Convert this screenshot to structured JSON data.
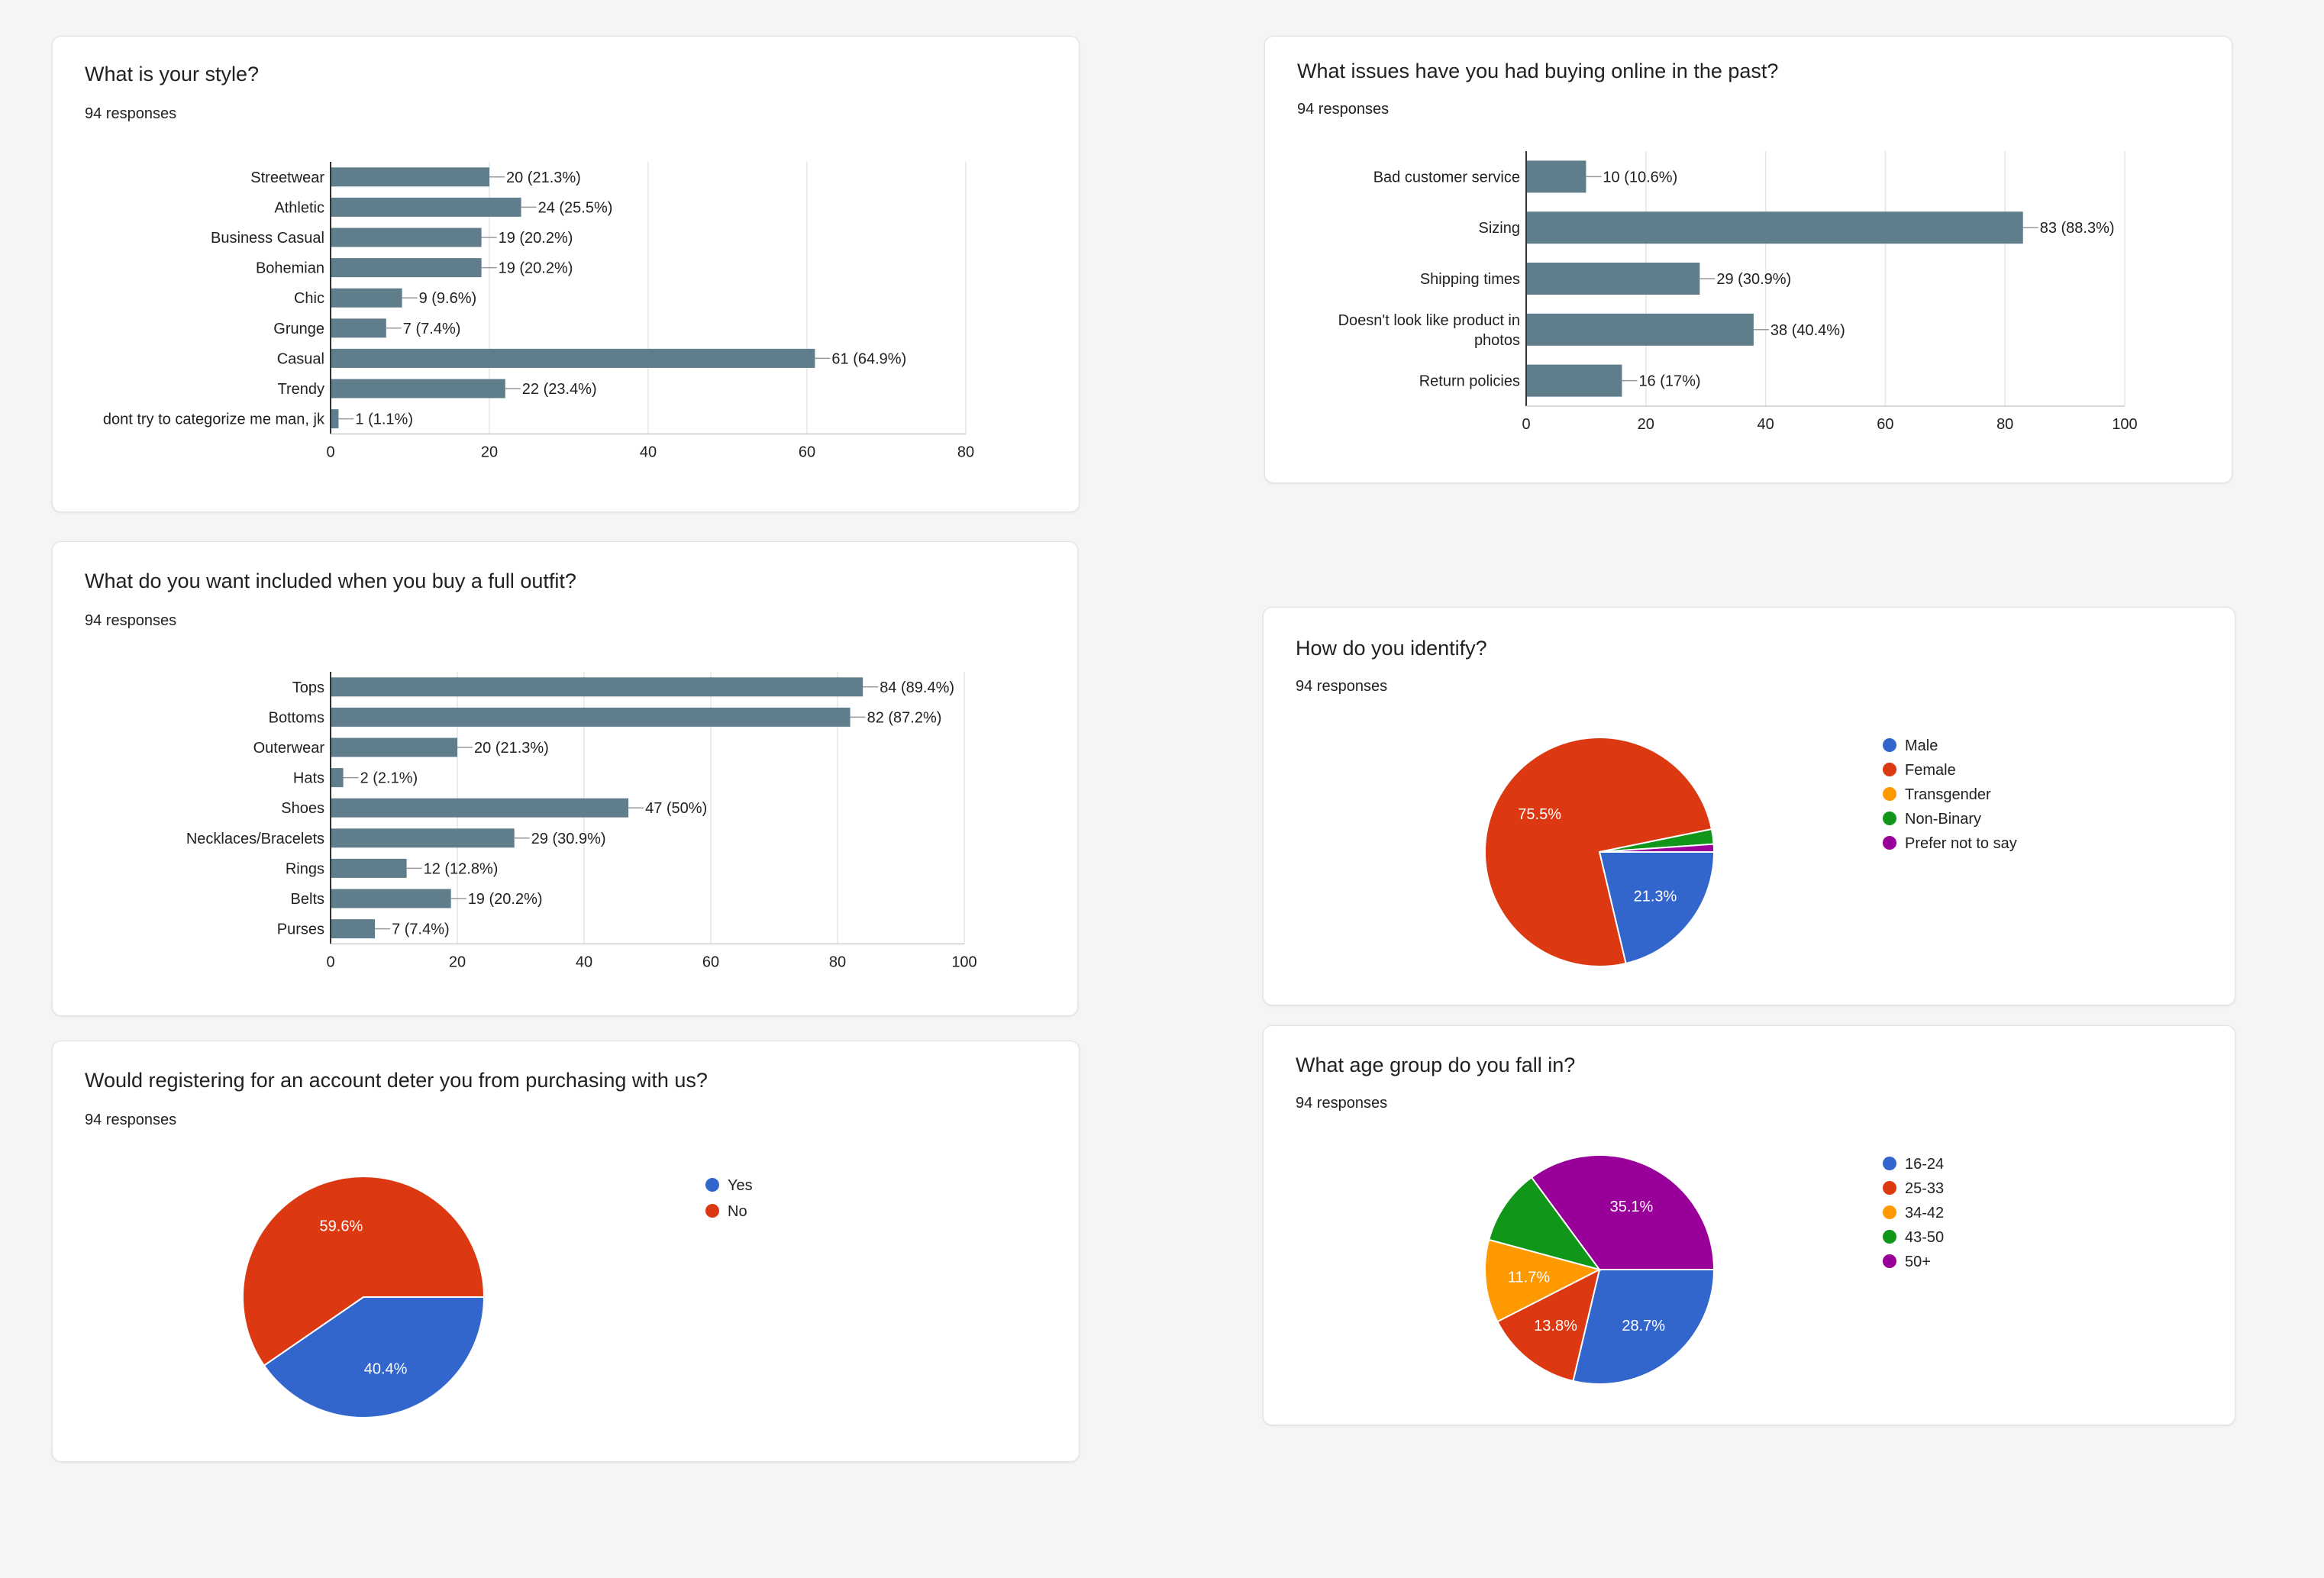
{
  "colors": {
    "bar": "#607d8b",
    "grid": "#e6e6e6",
    "axis": "#333333",
    "text": "#202124"
  },
  "chart_data": [
    {
      "id": "style",
      "type": "bar",
      "orientation": "horizontal",
      "title": "What is your style?",
      "subtitle": "94 responses",
      "categories": [
        "Streetwear",
        "Athletic",
        "Business Casual",
        "Bohemian",
        "Chic",
        "Grunge",
        "Casual",
        "Trendy",
        "dont try to categorize me man, jk"
      ],
      "values": [
        20,
        24,
        19,
        19,
        9,
        7,
        61,
        22,
        1
      ],
      "data_labels": [
        "20 (21.3%)",
        "24 (25.5%)",
        "19 (20.2%)",
        "19 (20.2%)",
        "9 (9.6%)",
        "7 (7.4%)",
        "61 (64.9%)",
        "22 (23.4%)",
        "1 (1.1%)"
      ],
      "xlim": [
        0,
        80
      ],
      "ticks": [
        0,
        20,
        40,
        60,
        80
      ],
      "tick_labels": [
        "0",
        "20",
        "40",
        "60",
        "80"
      ],
      "grid": true
    },
    {
      "id": "issues",
      "type": "bar",
      "orientation": "horizontal",
      "title": "What issues have you had buying online in the past?",
      "subtitle": "94 responses",
      "categories": [
        [
          "Bad customer service"
        ],
        [
          "Sizing"
        ],
        [
          "Shipping times"
        ],
        [
          "Doesn't look like product in",
          "photos"
        ],
        [
          "Return policies"
        ]
      ],
      "values": [
        10,
        83,
        29,
        38,
        16
      ],
      "data_labels": [
        "10 (10.6%)",
        "83 (88.3%)",
        "29 (30.9%)",
        "38 (40.4%)",
        "16 (17%)"
      ],
      "xlim": [
        0,
        100
      ],
      "ticks": [
        0,
        20,
        40,
        60,
        80,
        100
      ],
      "tick_labels": [
        "0",
        "20",
        "40",
        "60",
        "80",
        "100"
      ],
      "grid": true
    },
    {
      "id": "outfit",
      "type": "bar",
      "orientation": "horizontal",
      "title": "What do you want included when you buy a full outfit?",
      "subtitle": "94 responses",
      "categories": [
        "Tops",
        "Bottoms",
        "Outerwear",
        "Hats",
        "Shoes",
        "Necklaces/Bracelets",
        "Rings",
        "Belts",
        "Purses"
      ],
      "values": [
        84,
        82,
        20,
        2,
        47,
        29,
        12,
        19,
        7
      ],
      "data_labels": [
        "84 (89.4%)",
        "82 (87.2%)",
        "20 (21.3%)",
        "2 (2.1%)",
        "47 (50%)",
        "29 (30.9%)",
        "12 (12.8%)",
        "19 (20.2%)",
        "7 (7.4%)"
      ],
      "xlim": [
        0,
        100
      ],
      "ticks": [
        0,
        20,
        40,
        60,
        80,
        100
      ],
      "tick_labels": [
        "0",
        "20",
        "40",
        "60",
        "80",
        "100"
      ],
      "grid": true
    },
    {
      "id": "identify",
      "type": "pie",
      "title": "How do you identify?",
      "subtitle": "94 responses",
      "labels": [
        "Male",
        "Female",
        "Transgender",
        "Non-Binary",
        "Prefer not to say"
      ],
      "values": [
        21.3,
        75.5,
        0,
        2.1,
        1.1
      ],
      "slice_labels": [
        "21.3%",
        "75.5%",
        "",
        "",
        ""
      ],
      "colors": [
        "#3366cc",
        "#dc3912",
        "#ff9900",
        "#109618",
        "#990099"
      ],
      "legend_position": "right"
    },
    {
      "id": "register",
      "type": "pie",
      "title": "Would registering for an account deter you from purchasing with us?",
      "subtitle": "94 responses",
      "labels": [
        "Yes",
        "No"
      ],
      "values": [
        40.4,
        59.6
      ],
      "slice_labels": [
        "40.4%",
        "59.6%"
      ],
      "colors": [
        "#3366cc",
        "#dc3912"
      ],
      "legend_position": "right"
    },
    {
      "id": "age",
      "type": "pie",
      "title": "What age group do you fall in?",
      "subtitle": "94 responses",
      "labels": [
        "16-24",
        "25-33",
        "34-42",
        "43-50",
        "50+"
      ],
      "values": [
        28.7,
        13.8,
        11.7,
        10.7,
        35.1
      ],
      "slice_labels": [
        "28.7%",
        "13.8%",
        "11.7%",
        "",
        "35.1%"
      ],
      "colors": [
        "#3366cc",
        "#dc3912",
        "#ff9900",
        "#109618",
        "#990099"
      ],
      "legend_position": "right"
    }
  ]
}
